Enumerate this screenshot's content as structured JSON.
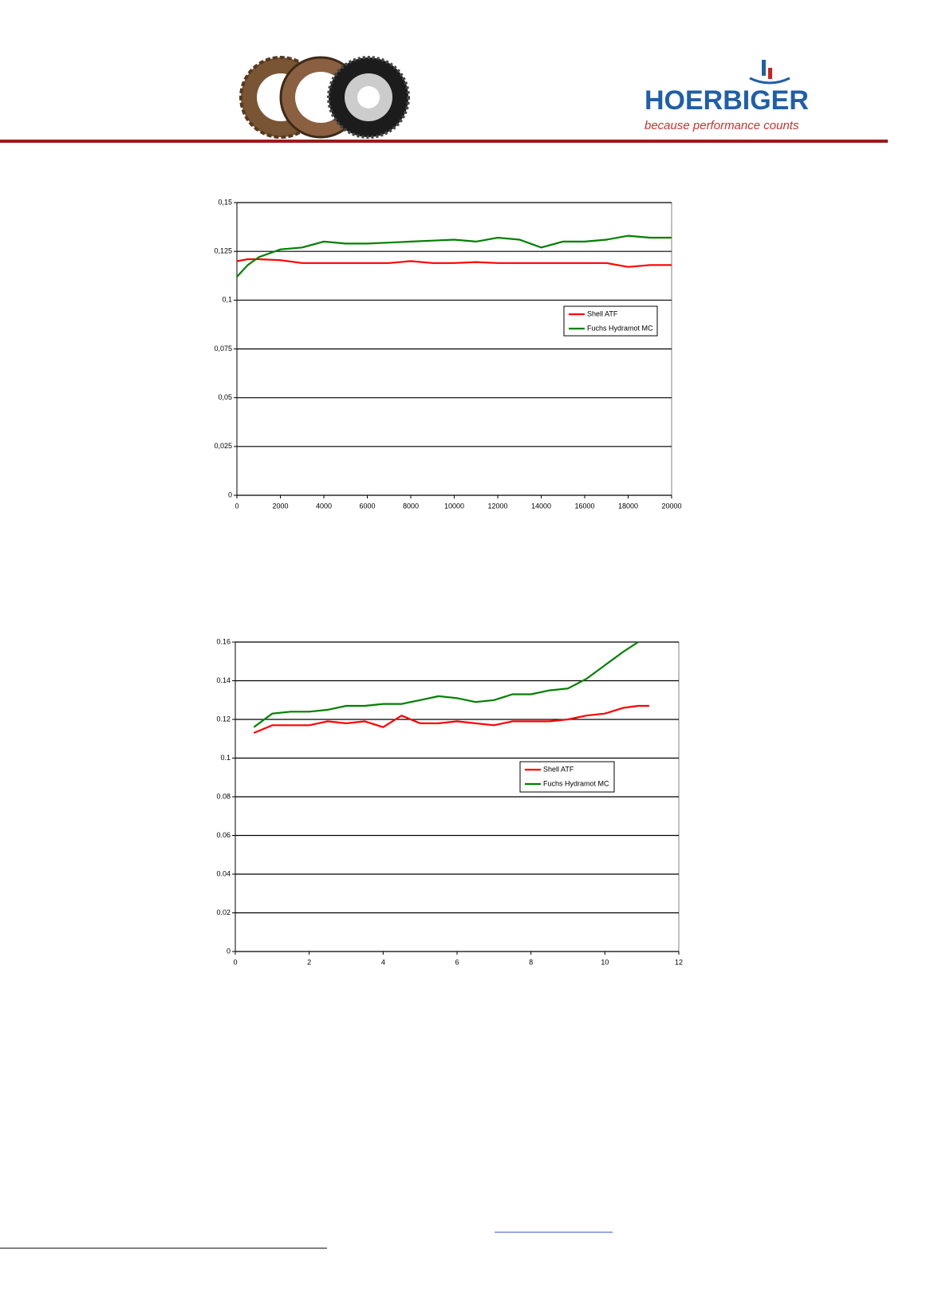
{
  "header": {
    "brand": "HOERBIGER",
    "tagline": "because performance counts"
  },
  "chart_data": [
    {
      "type": "line",
      "grid": true,
      "legend": "right",
      "xlim": [
        0,
        20000
      ],
      "xticks": [
        0,
        2000,
        4000,
        6000,
        8000,
        10000,
        12000,
        14000,
        16000,
        18000,
        20000
      ],
      "ylim": [
        0,
        0.15
      ],
      "yticks": [
        0,
        {
          "value": 0.025,
          "label": "0,025"
        },
        {
          "value": 0.05,
          "label": "0,05"
        },
        {
          "value": 0.075,
          "label": "0,075"
        },
        {
          "value": 0.1,
          "label": "0,1"
        },
        {
          "value": 0.125,
          "label": "0,125"
        },
        {
          "value": 0.15,
          "label": "0,15"
        }
      ],
      "x": [
        0,
        500,
        1000,
        2000,
        3000,
        4000,
        5000,
        6000,
        7000,
        8000,
        9000,
        10000,
        11000,
        12000,
        13000,
        14000,
        15000,
        16000,
        17000,
        18000,
        19000,
        20000
      ],
      "series": [
        {
          "name": "Shell ATF",
          "color": "#ff0000",
          "values": [
            0.12,
            0.121,
            0.121,
            0.1205,
            0.119,
            0.119,
            0.119,
            0.119,
            0.119,
            0.12,
            0.119,
            0.119,
            0.1195,
            0.119,
            0.119,
            0.119,
            0.119,
            0.119,
            0.119,
            0.117,
            0.118,
            0.118
          ]
        },
        {
          "name": "Fuchs Hydramot MC",
          "color": "#008000",
          "values": [
            0.112,
            0.118,
            0.122,
            0.126,
            0.127,
            0.13,
            0.129,
            0.129,
            0.1295,
            0.13,
            0.1305,
            0.131,
            0.13,
            0.132,
            0.131,
            0.127,
            0.13,
            0.13,
            0.131,
            0.133,
            0.132,
            0.132
          ]
        }
      ]
    },
    {
      "type": "line",
      "grid": true,
      "legend": "right",
      "xlim": [
        0,
        12
      ],
      "xticks": [
        0,
        2,
        4,
        6,
        8,
        10,
        12
      ],
      "ylim": [
        0,
        0.16
      ],
      "yticks": [
        0,
        0.02,
        0.04,
        0.06,
        0.08,
        0.1,
        0.12,
        0.14,
        0.16
      ],
      "x": [
        0.5,
        1,
        1.5,
        2,
        2.5,
        3,
        3.5,
        4,
        4.5,
        5,
        5.5,
        6,
        6.5,
        7,
        7.5,
        8,
        8.5,
        9,
        9.5,
        10,
        10.5,
        10.9,
        11.2
      ],
      "series": [
        {
          "name": "Shell ATF",
          "color": "#ff0000",
          "values": [
            0.113,
            0.117,
            0.117,
            0.117,
            0.119,
            0.118,
            0.119,
            0.116,
            0.122,
            0.118,
            0.118,
            0.119,
            0.118,
            0.117,
            0.119,
            0.119,
            0.119,
            0.12,
            0.122,
            0.123,
            0.126,
            0.127,
            0.127
          ]
        },
        {
          "name": "Fuchs Hydramot MC",
          "color": "#008000",
          "values": [
            0.116,
            0.123,
            0.124,
            0.124,
            0.125,
            0.127,
            0.127,
            0.128,
            0.128,
            0.13,
            0.132,
            0.131,
            0.129,
            0.13,
            0.133,
            0.133,
            0.135,
            0.136,
            0.141,
            0.148,
            0.155,
            0.16,
            null
          ]
        }
      ]
    }
  ]
}
